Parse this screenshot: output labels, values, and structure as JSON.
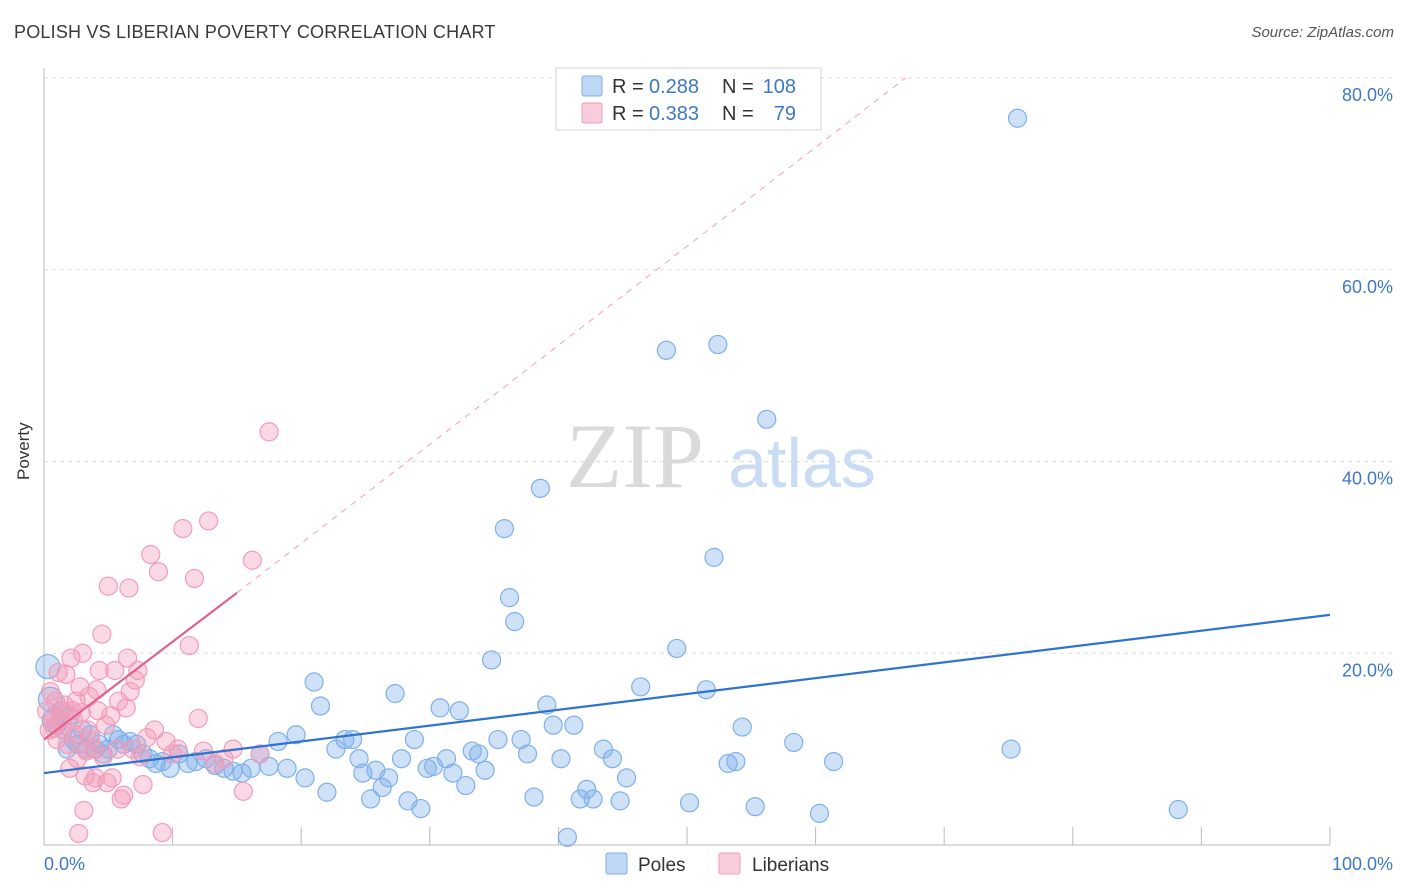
{
  "chart_data": {
    "type": "scatter",
    "title": "POLISH VS LIBERIAN POVERTY CORRELATION CHART",
    "source": "Source: ZipAtlas.com",
    "xlabel": "",
    "ylabel": "Poverty",
    "xlim": [
      0,
      100
    ],
    "ylim": [
      0,
      80
    ],
    "x_tick_labels": [
      "0.0%",
      "100.0%"
    ],
    "y_tick_labels": [
      "20.0%",
      "40.0%",
      "60.0%",
      "80.0%"
    ],
    "y_ticks": [
      20,
      40,
      60,
      80
    ],
    "watermark": {
      "zip": "ZIP",
      "atlas": "atlas"
    },
    "legend": {
      "r_label": "R =",
      "n_label": "N =",
      "entries": [
        {
          "name": "Poles",
          "r": "0.288",
          "n": "108",
          "color": "#7eb0ea"
        },
        {
          "name": "Liberians",
          "r": "0.383",
          "n": "79",
          "color": "#f29cb8"
        }
      ]
    },
    "series": [
      {
        "name": "Poles",
        "color": "#7eb0ea",
        "trend_color": "#2f73d0",
        "trend": {
          "x0": 0,
          "y0": 7.5,
          "x1": 100,
          "y1": 24
        },
        "points": [
          [
            0.3,
            18.6
          ],
          [
            0.5,
            15.2
          ],
          [
            0.8,
            13
          ],
          [
            1,
            12.5
          ],
          [
            1.3,
            14
          ],
          [
            1.5,
            12
          ],
          [
            1.8,
            10
          ],
          [
            2,
            13.5
          ],
          [
            2.3,
            11
          ],
          [
            2.6,
            10.5
          ],
          [
            3,
            12
          ],
          [
            3.3,
            10
          ],
          [
            3.6,
            11.5
          ],
          [
            4,
            10
          ],
          [
            4.3,
            10.5
          ],
          [
            4.6,
            9.5
          ],
          [
            5,
            10
          ],
          [
            5.4,
            11.5
          ],
          [
            5.8,
            11
          ],
          [
            6.2,
            10.5
          ],
          [
            6.7,
            10.8
          ],
          [
            7.2,
            10.5
          ],
          [
            7.7,
            9.5
          ],
          [
            8.2,
            9
          ],
          [
            8.7,
            8.5
          ],
          [
            9.2,
            8.7
          ],
          [
            9.8,
            8
          ],
          [
            10.5,
            9.5
          ],
          [
            11.2,
            8.5
          ],
          [
            11.8,
            8.7
          ],
          [
            12.6,
            9
          ],
          [
            13.3,
            8.3
          ],
          [
            14,
            8
          ],
          [
            14.7,
            7.7
          ],
          [
            15.4,
            7.5
          ],
          [
            16.1,
            8
          ],
          [
            16.8,
            9.5
          ],
          [
            17.5,
            8.2
          ],
          [
            18.2,
            10.8
          ],
          [
            18.9,
            8
          ],
          [
            19.6,
            11.5
          ],
          [
            20.3,
            7
          ],
          [
            21,
            17
          ],
          [
            21.5,
            14.5
          ],
          [
            22,
            5.5
          ],
          [
            22.7,
            10
          ],
          [
            23.4,
            11
          ],
          [
            24,
            11
          ],
          [
            24.5,
            9
          ],
          [
            24.8,
            7.5
          ],
          [
            25.4,
            4.8
          ],
          [
            25.8,
            7.8
          ],
          [
            26.3,
            6
          ],
          [
            26.8,
            7
          ],
          [
            27.3,
            15.8
          ],
          [
            27.8,
            9
          ],
          [
            28.3,
            4.6
          ],
          [
            28.8,
            11
          ],
          [
            29.3,
            3.8
          ],
          [
            29.8,
            8
          ],
          [
            30.3,
            8.2
          ],
          [
            30.8,
            14.3
          ],
          [
            31.3,
            9
          ],
          [
            31.8,
            7.5
          ],
          [
            32.3,
            14
          ],
          [
            32.8,
            6.2
          ],
          [
            33.3,
            9.8
          ],
          [
            33.8,
            9.5
          ],
          [
            34.3,
            7.8
          ],
          [
            34.8,
            19.3
          ],
          [
            35.3,
            11
          ],
          [
            35.8,
            33
          ],
          [
            36.2,
            25.8
          ],
          [
            36.6,
            23.3
          ],
          [
            37.1,
            11
          ],
          [
            37.6,
            9.5
          ],
          [
            38.1,
            5
          ],
          [
            38.6,
            37.2
          ],
          [
            39.1,
            14.6
          ],
          [
            39.6,
            12.5
          ],
          [
            40.2,
            9
          ],
          [
            40.7,
            0.8
          ],
          [
            41.2,
            12.5
          ],
          [
            41.7,
            4.8
          ],
          [
            42.2,
            5.8
          ],
          [
            42.7,
            4.8
          ],
          [
            43.5,
            10
          ],
          [
            44.2,
            9
          ],
          [
            44.8,
            4.6
          ],
          [
            45.3,
            7
          ],
          [
            46.4,
            16.5
          ],
          [
            48.4,
            51.6
          ],
          [
            49.2,
            20.5
          ],
          [
            50.2,
            4.4
          ],
          [
            51.5,
            16.2
          ],
          [
            52.4,
            52.2
          ],
          [
            53.2,
            8.5
          ],
          [
            53.8,
            8.7
          ],
          [
            54.3,
            12.3
          ],
          [
            55.3,
            4
          ],
          [
            56.2,
            44.4
          ],
          [
            58.3,
            10.7
          ],
          [
            60.3,
            3.3
          ],
          [
            61.4,
            8.7
          ],
          [
            75.7,
            75.8
          ],
          [
            75.2,
            10
          ],
          [
            88.2,
            3.7
          ],
          [
            52.1,
            30
          ]
        ]
      },
      {
        "name": "Liberians",
        "color": "#f29cb8",
        "trend_color": "#e0608e",
        "trend": {
          "x0": 0,
          "y0": 11,
          "x1": 15,
          "y1": 26.3
        },
        "dashed": {
          "x0": 15,
          "y0": 26.3,
          "x1": 67,
          "y1": 80
        },
        "points": [
          [
            0.2,
            14
          ],
          [
            0.4,
            12
          ],
          [
            0.5,
            16
          ],
          [
            0.7,
            13
          ],
          [
            0.9,
            15
          ],
          [
            1,
            11
          ],
          [
            1.2,
            13
          ],
          [
            1.4,
            14
          ],
          [
            1.5,
            12.5
          ],
          [
            1.7,
            17.8
          ],
          [
            1.8,
            10.5
          ],
          [
            2,
            8
          ],
          [
            2.1,
            19.5
          ],
          [
            2.2,
            14
          ],
          [
            2.3,
            13
          ],
          [
            2.5,
            15
          ],
          [
            2.6,
            9
          ],
          [
            2.7,
            1.2
          ],
          [
            2.8,
            16.5
          ],
          [
            3,
            20
          ],
          [
            3.1,
            3.6
          ],
          [
            3.2,
            7.2
          ],
          [
            3.4,
            12
          ],
          [
            3.5,
            15.5
          ],
          [
            3.6,
            11
          ],
          [
            3.8,
            6.5
          ],
          [
            3.9,
            10
          ],
          [
            4,
            7
          ],
          [
            4.2,
            14
          ],
          [
            4.3,
            18.2
          ],
          [
            4.5,
            22
          ],
          [
            4.6,
            9.2
          ],
          [
            4.8,
            12.5
          ],
          [
            4.9,
            6.5
          ],
          [
            5,
            27
          ],
          [
            5.2,
            13.5
          ],
          [
            5.3,
            7
          ],
          [
            5.5,
            18.2
          ],
          [
            5.7,
            10
          ],
          [
            5.8,
            15
          ],
          [
            6,
            4.8
          ],
          [
            6.2,
            5.2
          ],
          [
            6.4,
            14.3
          ],
          [
            6.5,
            19.5
          ],
          [
            6.6,
            26.8
          ],
          [
            6.7,
            16
          ],
          [
            6.9,
            10
          ],
          [
            7.1,
            17.2
          ],
          [
            7.3,
            18.2
          ],
          [
            7.5,
            9.2
          ],
          [
            7.7,
            6.3
          ],
          [
            8,
            11.2
          ],
          [
            8.3,
            30.3
          ],
          [
            8.6,
            12
          ],
          [
            8.9,
            28.5
          ],
          [
            9.2,
            1.3
          ],
          [
            9.5,
            10.8
          ],
          [
            10,
            9.5
          ],
          [
            10.4,
            10
          ],
          [
            10.8,
            33
          ],
          [
            11.3,
            20.8
          ],
          [
            11.7,
            27.8
          ],
          [
            12,
            13.2
          ],
          [
            12.4,
            9.8
          ],
          [
            12.8,
            33.8
          ],
          [
            13.3,
            8.5
          ],
          [
            14,
            9
          ],
          [
            14.7,
            10
          ],
          [
            15.5,
            5.6
          ],
          [
            16.2,
            29.7
          ],
          [
            16.8,
            9.5
          ],
          [
            17.5,
            43.1
          ],
          [
            1.1,
            18
          ],
          [
            2.4,
            11.5
          ],
          [
            0.8,
            12.2
          ],
          [
            1.6,
            14.6
          ],
          [
            3.3,
            9.8
          ],
          [
            2.9,
            13.8
          ],
          [
            4.1,
            16.2
          ]
        ]
      }
    ]
  }
}
